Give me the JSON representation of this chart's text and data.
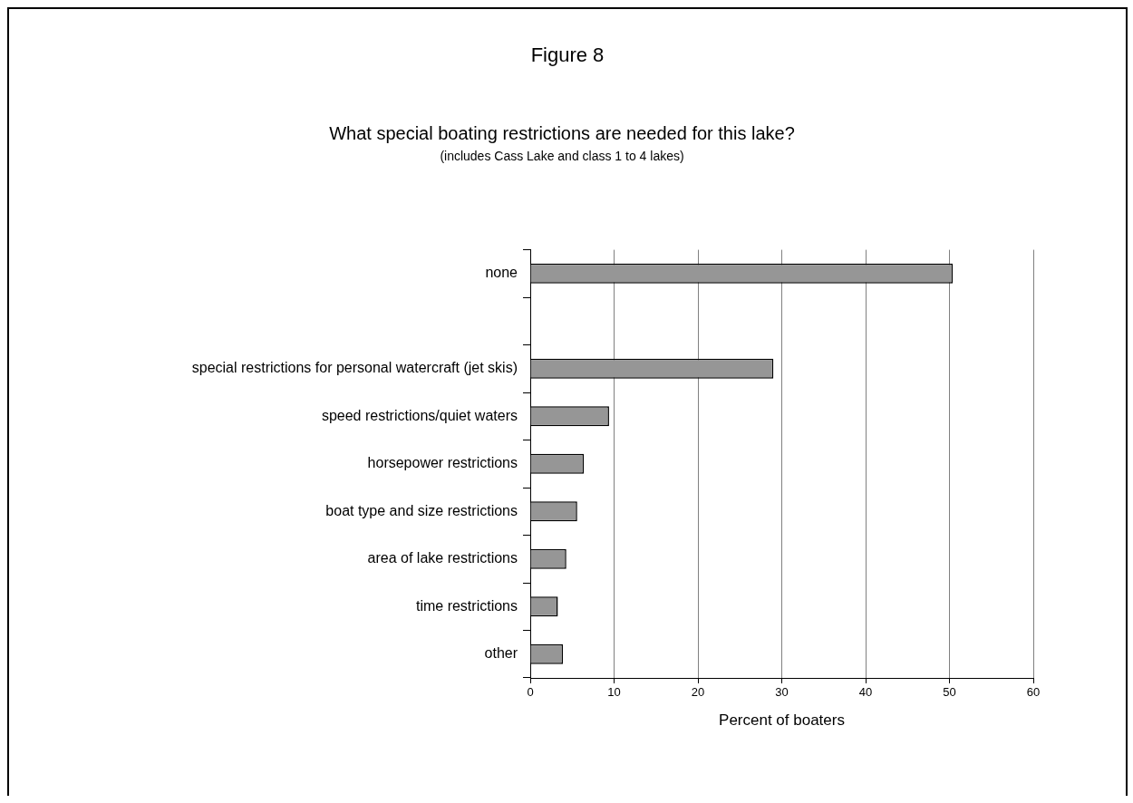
{
  "chart_data": {
    "type": "bar",
    "orientation": "horizontal",
    "title": "What special boating restrictions are needed for this lake?",
    "subtitle": "(includes Cass Lake and class 1 to 4 lakes)",
    "annotations": [
      "Figure 8"
    ],
    "xlabel": "Percent of boaters",
    "categories": [
      "none",
      null,
      "special restrictions for personal watercraft (jet skis)",
      "speed restrictions/quiet waters",
      "horsepower restrictions",
      "boat type and size restrictions",
      "area of lake restrictions",
      "time restrictions",
      "other"
    ],
    "values": [
      50.4,
      null,
      29.0,
      9.4,
      6.4,
      5.6,
      4.3,
      3.3,
      3.9
    ],
    "color": "#969696",
    "xlim": [
      0,
      60
    ],
    "xticks": [
      0,
      10,
      20,
      30,
      40,
      50,
      60
    ],
    "grid": "x",
    "legend": false
  }
}
